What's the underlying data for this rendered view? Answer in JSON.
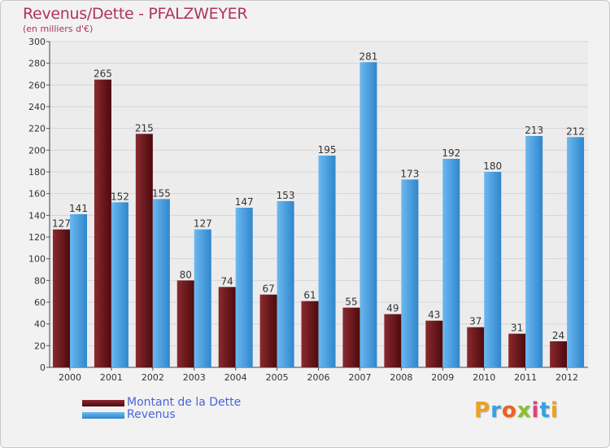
{
  "chart_data": {
    "type": "bar",
    "title": "Revenus/Dette - PFALZWEYER",
    "subtitle": "(en milliers d'€)",
    "categories": [
      "2000",
      "2001",
      "2002",
      "2003",
      "2004",
      "2005",
      "2006",
      "2007",
      "2008",
      "2009",
      "2010",
      "2011",
      "2012"
    ],
    "series": [
      {
        "name": "Montant de la Dette",
        "color": "#7a1a1e",
        "values": [
          127,
          265,
          215,
          80,
          74,
          67,
          61,
          55,
          49,
          43,
          37,
          31,
          24
        ]
      },
      {
        "name": "Revenus",
        "color": "#4a9fe0",
        "values": [
          141,
          152,
          155,
          127,
          147,
          153,
          195,
          281,
          173,
          192,
          180,
          213,
          212
        ]
      }
    ],
    "ylim": [
      0,
      300
    ],
    "ytick_step": 20,
    "grid": true,
    "legend_position": "bottom-left"
  },
  "logo": {
    "letters": [
      "P",
      "r",
      "o",
      "x",
      "i",
      "t",
      "i"
    ],
    "colors": [
      "#f0a020",
      "#3aa0e0",
      "#f06020",
      "#8ac030",
      "#e04080",
      "#3aa0e0",
      "#f0a020"
    ]
  }
}
